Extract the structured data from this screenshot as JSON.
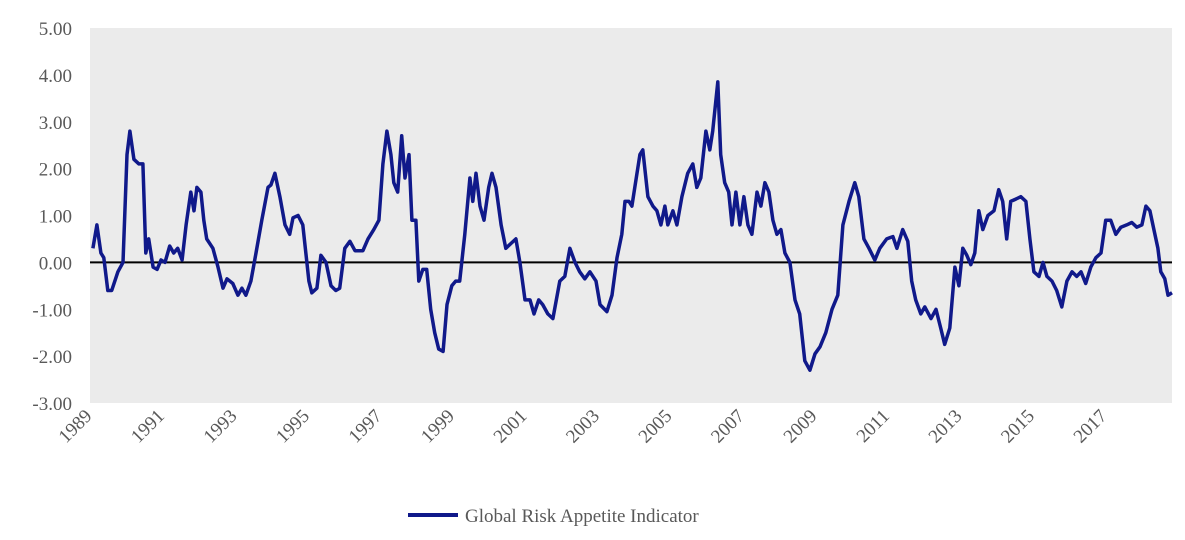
{
  "chart_data": {
    "type": "line",
    "x": [
      1989.0,
      1989.11,
      1989.22,
      1989.3,
      1989.41,
      1989.52,
      1989.69,
      1989.83,
      1989.94,
      1990.02,
      1990.13,
      1990.27,
      1990.38,
      1990.46,
      1990.54,
      1990.66,
      1990.77,
      1990.88,
      1990.99,
      1991.12,
      1991.23,
      1991.34,
      1991.46,
      1991.57,
      1991.7,
      1991.79,
      1991.87,
      1991.98,
      1992.06,
      1992.14,
      1992.31,
      1992.45,
      1992.59,
      1992.7,
      1992.86,
      1993.0,
      1993.11,
      1993.22,
      1993.36,
      1993.5,
      1993.66,
      1993.83,
      1993.91,
      1994.02,
      1994.16,
      1994.3,
      1994.43,
      1994.52,
      1994.66,
      1994.79,
      1994.96,
      1995.04,
      1995.18,
      1995.29,
      1995.43,
      1995.57,
      1995.7,
      1995.81,
      1995.95,
      1996.09,
      1996.23,
      1996.45,
      1996.59,
      1996.75,
      1996.89,
      1997.0,
      1997.11,
      1997.22,
      1997.3,
      1997.41,
      1997.52,
      1997.61,
      1997.72,
      1997.8,
      1997.91,
      1997.99,
      1998.1,
      1998.21,
      1998.32,
      1998.43,
      1998.54,
      1998.66,
      1998.77,
      1998.9,
      1999.01,
      1999.12,
      1999.26,
      1999.4,
      1999.48,
      1999.57,
      1999.68,
      1999.79,
      1999.92,
      2000.01,
      2000.12,
      2000.26,
      2000.39,
      2000.53,
      2000.67,
      2000.78,
      2000.92,
      2001.06,
      2001.17,
      2001.3,
      2001.41,
      2001.55,
      2001.69,
      2001.88,
      2002.02,
      2002.16,
      2002.3,
      2002.43,
      2002.57,
      2002.71,
      2002.88,
      2002.99,
      2003.18,
      2003.32,
      2003.46,
      2003.59,
      2003.68,
      2003.79,
      2003.87,
      2003.95,
      2004.09,
      2004.17,
      2004.31,
      2004.45,
      2004.56,
      2004.67,
      2004.78,
      2004.86,
      2005.0,
      2005.11,
      2005.25,
      2005.41,
      2005.55,
      2005.66,
      2005.77,
      2005.91,
      2006.02,
      2006.1,
      2006.24,
      2006.32,
      2006.43,
      2006.54,
      2006.63,
      2006.74,
      2006.85,
      2006.96,
      2007.07,
      2007.18,
      2007.32,
      2007.43,
      2007.54,
      2007.65,
      2007.76,
      2007.87,
      2007.98,
      2008.09,
      2008.23,
      2008.37,
      2008.5,
      2008.64,
      2008.78,
      2008.92,
      2009.06,
      2009.22,
      2009.39,
      2009.55,
      2009.69,
      2009.86,
      2010.02,
      2010.13,
      2010.27,
      2010.41,
      2010.57,
      2010.71,
      2010.9,
      2011.07,
      2011.18,
      2011.34,
      2011.48,
      2011.59,
      2011.7,
      2011.84,
      2011.95,
      2012.12,
      2012.26,
      2012.39,
      2012.5,
      2012.64,
      2012.78,
      2012.89,
      2013.0,
      2013.11,
      2013.22,
      2013.33,
      2013.44,
      2013.55,
      2013.69,
      2013.86,
      2013.99,
      2014.1,
      2014.21,
      2014.32,
      2014.46,
      2014.6,
      2014.74,
      2014.85,
      2014.96,
      2015.1,
      2015.21,
      2015.32,
      2015.46,
      2015.59,
      2015.73,
      2015.87,
      2016.01,
      2016.14,
      2016.26,
      2016.39,
      2016.53,
      2016.67,
      2016.81,
      2016.94,
      2017.08,
      2017.22,
      2017.36,
      2017.52,
      2017.66,
      2017.8,
      2017.94,
      2018.05,
      2018.16,
      2018.27,
      2018.38,
      2018.46,
      2018.57,
      2018.66,
      2018.77
    ],
    "series": [
      {
        "name": "Global Risk Appetite Indicator",
        "color": "#10198a",
        "values": [
          0.3,
          0.8,
          0.2,
          0.1,
          -0.6,
          -0.6,
          -0.2,
          0.0,
          2.3,
          2.8,
          2.2,
          2.1,
          2.1,
          0.2,
          0.5,
          -0.1,
          -0.15,
          0.05,
          0.0,
          0.35,
          0.2,
          0.3,
          0.05,
          0.8,
          1.5,
          1.1,
          1.6,
          1.5,
          0.9,
          0.5,
          0.3,
          -0.1,
          -0.55,
          -0.35,
          -0.45,
          -0.7,
          -0.55,
          -0.7,
          -0.4,
          0.2,
          0.9,
          1.6,
          1.65,
          1.9,
          1.4,
          0.8,
          0.6,
          0.95,
          1.0,
          0.8,
          -0.4,
          -0.65,
          -0.55,
          0.15,
          0.0,
          -0.5,
          -0.6,
          -0.55,
          0.3,
          0.45,
          0.25,
          0.25,
          0.5,
          0.7,
          0.9,
          2.1,
          2.8,
          2.3,
          1.7,
          1.5,
          2.7,
          1.8,
          2.3,
          0.9,
          0.9,
          -0.4,
          -0.15,
          -0.15,
          -1.0,
          -1.5,
          -1.85,
          -1.9,
          -0.9,
          -0.5,
          -0.4,
          -0.4,
          0.6,
          1.8,
          1.3,
          1.9,
          1.2,
          0.9,
          1.6,
          1.9,
          1.6,
          0.8,
          0.3,
          0.4,
          0.5,
          0.0,
          -0.8,
          -0.8,
          -1.1,
          -0.8,
          -0.9,
          -1.1,
          -1.2,
          -0.4,
          -0.3,
          0.3,
          0.0,
          -0.2,
          -0.35,
          -0.2,
          -0.4,
          -0.9,
          -1.05,
          -0.7,
          0.1,
          0.6,
          1.3,
          1.3,
          1.2,
          1.6,
          2.3,
          2.4,
          1.4,
          1.2,
          1.1,
          0.8,
          1.2,
          0.8,
          1.1,
          0.8,
          1.4,
          1.9,
          2.1,
          1.6,
          1.8,
          2.8,
          2.4,
          2.8,
          3.85,
          2.3,
          1.7,
          1.5,
          0.8,
          1.5,
          0.8,
          1.4,
          0.8,
          0.6,
          1.5,
          1.2,
          1.7,
          1.5,
          0.9,
          0.6,
          0.7,
          0.2,
          0.0,
          -0.8,
          -1.1,
          -2.1,
          -2.3,
          -1.95,
          -1.8,
          -1.5,
          -1.0,
          -0.7,
          0.8,
          1.3,
          1.7,
          1.4,
          0.5,
          0.3,
          0.05,
          0.3,
          0.5,
          0.55,
          0.3,
          0.7,
          0.45,
          -0.4,
          -0.8,
          -1.1,
          -0.95,
          -1.2,
          -1.0,
          -1.4,
          -1.75,
          -1.4,
          -0.1,
          -0.5,
          0.3,
          0.15,
          -0.05,
          0.2,
          1.1,
          0.7,
          1.0,
          1.1,
          1.55,
          1.3,
          0.5,
          1.3,
          1.35,
          1.4,
          1.3,
          0.5,
          -0.2,
          -0.3,
          0.0,
          -0.3,
          -0.4,
          -0.6,
          -0.95,
          -0.4,
          -0.2,
          -0.3,
          -0.2,
          -0.45,
          -0.1,
          0.1,
          0.2,
          0.9,
          0.9,
          0.6,
          0.75,
          0.8,
          0.85,
          0.75,
          0.8,
          1.2,
          1.1,
          0.7,
          0.3,
          -0.2,
          -0.35,
          -0.7,
          -0.65
        ]
      }
    ],
    "xlim": [
      1988.92,
      2018.77
    ],
    "xticks": [
      1989,
      1991,
      1993,
      1995,
      1997,
      1999,
      2001,
      2003,
      2005,
      2007,
      2009,
      2011,
      2013,
      2015,
      2017
    ],
    "ylim": [
      -3,
      5
    ],
    "yticks": [
      {
        "value": -3,
        "label": "-3.00"
      },
      {
        "value": -2,
        "label": "-2.00"
      },
      {
        "value": -1,
        "label": "-1.00"
      },
      {
        "value": 0,
        "label": "0.00"
      },
      {
        "value": 1,
        "label": "1.00"
      },
      {
        "value": 2,
        "label": "2.00"
      },
      {
        "value": 3,
        "label": "3.00"
      },
      {
        "value": 4,
        "label": "4.00"
      },
      {
        "value": 5,
        "label": "5.00"
      }
    ],
    "legend": "bottom"
  }
}
